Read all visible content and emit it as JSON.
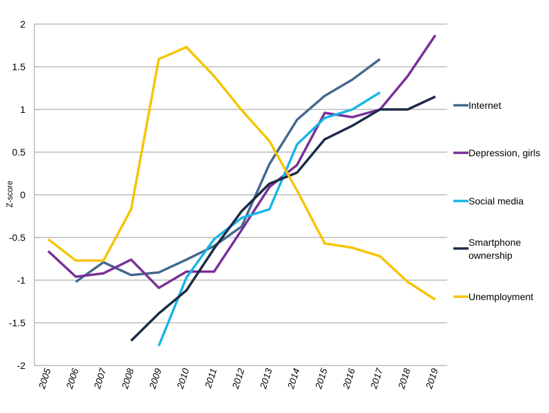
{
  "chart_data": {
    "type": "line",
    "title": "",
    "xlabel": "",
    "ylabel": "Z-score",
    "x": [
      "2005",
      "2006",
      "2007",
      "2008",
      "2009",
      "2010",
      "2011",
      "2012",
      "2013",
      "2014",
      "2015",
      "2016",
      "2017",
      "2018",
      "2019"
    ],
    "ylim": [
      -2,
      2
    ],
    "yticks": [
      "2",
      "1.5",
      "1",
      "0.5",
      "0",
      "-0.5",
      "-1",
      "-1.5",
      "-2"
    ],
    "grid": true,
    "legend_position": "right",
    "series": [
      {
        "name": "Internet",
        "color": "#44688e",
        "values": [
          null,
          -1.02,
          -0.79,
          -0.94,
          -0.91,
          -0.76,
          -0.6,
          -0.37,
          0.36,
          0.88,
          1.16,
          1.35,
          1.59,
          null,
          null
        ]
      },
      {
        "name": "Depression, girls",
        "color": "#7b2f96",
        "values": [
          -0.66,
          -0.96,
          -0.92,
          -0.76,
          -1.09,
          -0.9,
          -0.9,
          -0.41,
          0.09,
          0.35,
          0.96,
          0.91,
          1.0,
          1.39,
          1.87
        ]
      },
      {
        "name": "Social media",
        "color": "#1ab4e6",
        "values": [
          null,
          null,
          null,
          null,
          -1.77,
          -0.97,
          -0.52,
          -0.27,
          -0.17,
          0.59,
          0.9,
          1.0,
          1.2,
          null,
          null
        ]
      },
      {
        "name": "Smartphone ownership",
        "color": "#1b2b45",
        "values": [
          null,
          null,
          null,
          -1.71,
          -1.39,
          -1.12,
          -0.63,
          -0.19,
          0.13,
          0.26,
          0.65,
          0.81,
          1.0,
          1.0,
          1.15
        ]
      },
      {
        "name": "Unemployment",
        "color": "#f5c400",
        "values": [
          -0.52,
          -0.77,
          -0.77,
          -0.17,
          1.59,
          1.73,
          1.39,
          0.99,
          0.63,
          0.05,
          -0.57,
          -0.62,
          -0.72,
          -1.02,
          -1.23
        ]
      }
    ]
  }
}
